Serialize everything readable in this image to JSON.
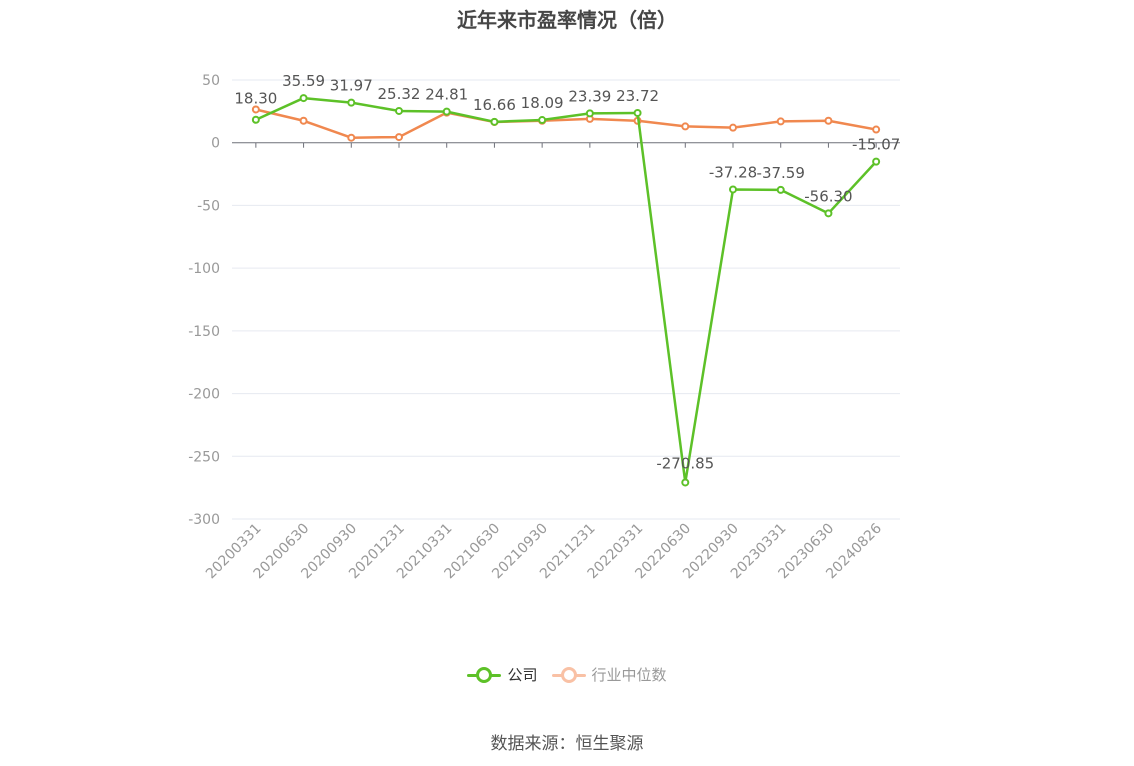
{
  "source_label": "数据来源：恒生聚源",
  "colors": {
    "company": "#5dc128",
    "industry": "#f0884f",
    "grid": "#e6e9f0",
    "axis_text": "#999999",
    "label_text": "#555555"
  },
  "chart_data": {
    "type": "line",
    "title": "近年来市盈率情况（倍）",
    "categories": [
      "20200331",
      "20200630",
      "20200930",
      "20201231",
      "20210331",
      "20210630",
      "20210930",
      "20211231",
      "20220331",
      "20220630",
      "20220930",
      "20230331",
      "20230630",
      "20240826"
    ],
    "ylim": [
      -300,
      50
    ],
    "yticks": [
      50,
      0,
      -50,
      -100,
      -150,
      -200,
      -250,
      -300
    ],
    "grid": true,
    "legend_position": "bottom",
    "series": [
      {
        "name": "公司",
        "values": [
          18.3,
          35.59,
          31.97,
          25.32,
          24.81,
          16.66,
          18.09,
          23.39,
          23.72,
          -270.85,
          -37.28,
          -37.59,
          -56.3,
          -15.07
        ],
        "labels": [
          "18.30",
          "35.59",
          "31.97",
          "25.32",
          "24.81",
          "16.66",
          "18.09",
          "23.39",
          "23.72",
          "-270.85",
          "-37.28",
          "-37.59",
          "-56.30",
          "-15.07"
        ]
      },
      {
        "name": "行业中位数",
        "values": [
          26.5,
          17.5,
          4.0,
          4.5,
          24.0,
          16.5,
          17.5,
          19.0,
          17.5,
          13.0,
          12.0,
          17.0,
          17.5,
          10.5
        ]
      }
    ]
  }
}
